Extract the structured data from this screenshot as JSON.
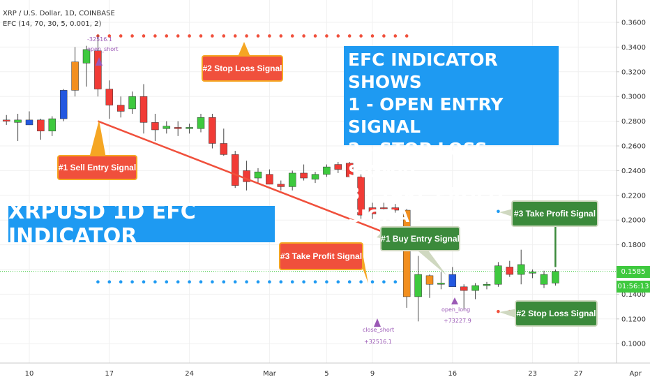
{
  "header": {
    "symbol_line": "XRP / U.S. Dollar, 1D, COINBASE",
    "indicator_line": "EFC (14, 70, 30, 5, 0.001, 2)"
  },
  "annotations": {
    "headline": "XRPUSD 1D EFC INDICATOR",
    "legend_lines": [
      "EFC INDICATOR SHOWS",
      "1 - OPEN ENTRY SIGNAL",
      "2 - STOP LOSS SIGNAL",
      "3 - TAKE PROFIT SIGNAL"
    ],
    "sell_entry": "#1 Sell Entry Signal",
    "stop_loss_top": "#2 Stop Loss Signal",
    "take_profit_left": "#3 Take Profit Signal",
    "buy_entry": "#1 Buy Entry Signal",
    "take_profit_right": "#3 Take Profit Signal",
    "stop_loss_bottom": "#2 Stop Loss Signal",
    "open_short": "open_short",
    "open_short_value": "-32516.1",
    "close_short": "close_short",
    "close_short_value": "+32516.1",
    "open_long": "open_long",
    "open_long_value": "+73227.9"
  },
  "price_labels": {
    "current_price": "0.1585",
    "countdown": "01:56:13"
  },
  "colors": {
    "bull": "#3ec93e",
    "bear": "#f13b36",
    "blue_candle": "#2358e0",
    "orange_candle": "#f28f1f",
    "red_dot": "#f0503c",
    "blue_dot": "#1e9af2",
    "arrow_red": "#f0503c",
    "arrow_green": "#3b8a3b",
    "price_line": "#3ec93e"
  },
  "chart_data": {
    "type": "candlestick",
    "y_ticks": [
      "0.1000",
      "0.1200",
      "0.1400",
      "0.1600",
      "0.1800",
      "0.2000",
      "0.2200",
      "0.2400",
      "0.2600",
      "0.2800",
      "0.3000",
      "0.3200",
      "0.3400",
      "0.3600"
    ],
    "ylim": [
      0.09,
      0.37
    ],
    "x_ticks": [
      {
        "label": "10",
        "day": 10
      },
      {
        "label": "17",
        "day": 17
      },
      {
        "label": "24",
        "day": 24
      },
      {
        "label": "Mar",
        "day": 31
      },
      {
        "label": "5",
        "day": 36
      },
      {
        "label": "9",
        "day": 40
      },
      {
        "label": "16",
        "day": 47
      },
      {
        "label": "23",
        "day": 54
      },
      {
        "label": "27",
        "day": 58
      },
      {
        "label": "Apr",
        "day": 63
      }
    ],
    "candles": [
      {
        "day": 8,
        "o": 0.281,
        "h": 0.285,
        "l": 0.277,
        "c": 0.28,
        "color": "bear"
      },
      {
        "day": 9,
        "o": 0.279,
        "h": 0.286,
        "l": 0.264,
        "c": 0.281,
        "color": "bull"
      },
      {
        "day": 10,
        "o": 0.281,
        "h": 0.288,
        "l": 0.277,
        "c": 0.277,
        "color": "blue"
      },
      {
        "day": 11,
        "o": 0.272,
        "h": 0.282,
        "l": 0.265,
        "c": 0.281,
        "color": "bear"
      },
      {
        "day": 12,
        "o": 0.272,
        "h": 0.284,
        "l": 0.268,
        "c": 0.282,
        "color": "bull"
      },
      {
        "day": 13,
        "o": 0.282,
        "h": 0.306,
        "l": 0.28,
        "c": 0.305,
        "color": "blue"
      },
      {
        "day": 14,
        "o": 0.305,
        "h": 0.34,
        "l": 0.3,
        "c": 0.328,
        "color": "orange"
      },
      {
        "day": 15,
        "o": 0.327,
        "h": 0.341,
        "l": 0.308,
        "c": 0.338,
        "color": "bull"
      },
      {
        "day": 16,
        "o": 0.337,
        "h": 0.35,
        "l": 0.3,
        "c": 0.306,
        "color": "bear"
      },
      {
        "day": 17,
        "o": 0.306,
        "h": 0.313,
        "l": 0.282,
        "c": 0.293,
        "color": "bear"
      },
      {
        "day": 18,
        "o": 0.293,
        "h": 0.3,
        "l": 0.283,
        "c": 0.288,
        "color": "bear"
      },
      {
        "day": 19,
        "o": 0.29,
        "h": 0.304,
        "l": 0.286,
        "c": 0.3,
        "color": "bull"
      },
      {
        "day": 20,
        "o": 0.3,
        "h": 0.31,
        "l": 0.27,
        "c": 0.279,
        "color": "bear"
      },
      {
        "day": 21,
        "o": 0.279,
        "h": 0.286,
        "l": 0.264,
        "c": 0.273,
        "color": "bear"
      },
      {
        "day": 22,
        "o": 0.274,
        "h": 0.28,
        "l": 0.27,
        "c": 0.276,
        "color": "bull"
      },
      {
        "day": 23,
        "o": 0.275,
        "h": 0.28,
        "l": 0.268,
        "c": 0.274,
        "color": "bear"
      },
      {
        "day": 24,
        "o": 0.274,
        "h": 0.278,
        "l": 0.27,
        "c": 0.275,
        "color": "bull"
      },
      {
        "day": 25,
        "o": 0.274,
        "h": 0.286,
        "l": 0.271,
        "c": 0.283,
        "color": "bull"
      },
      {
        "day": 26,
        "o": 0.283,
        "h": 0.286,
        "l": 0.258,
        "c": 0.262,
        "color": "bear"
      },
      {
        "day": 27,
        "o": 0.262,
        "h": 0.274,
        "l": 0.252,
        "c": 0.253,
        "color": "bear"
      },
      {
        "day": 28,
        "o": 0.253,
        "h": 0.256,
        "l": 0.226,
        "c": 0.228,
        "color": "bear"
      },
      {
        "day": 29,
        "o": 0.24,
        "h": 0.248,
        "l": 0.224,
        "c": 0.231,
        "color": "bear"
      },
      {
        "day": 30,
        "o": 0.234,
        "h": 0.242,
        "l": 0.229,
        "c": 0.239,
        "color": "bull"
      },
      {
        "day": 31,
        "o": 0.237,
        "h": 0.241,
        "l": 0.229,
        "c": 0.229,
        "color": "bear"
      },
      {
        "day": 32,
        "o": 0.229,
        "h": 0.232,
        "l": 0.224,
        "c": 0.227,
        "color": "bear"
      },
      {
        "day": 33,
        "o": 0.227,
        "h": 0.24,
        "l": 0.224,
        "c": 0.238,
        "color": "bull"
      },
      {
        "day": 34,
        "o": 0.238,
        "h": 0.245,
        "l": 0.232,
        "c": 0.234,
        "color": "bear"
      },
      {
        "day": 35,
        "o": 0.233,
        "h": 0.239,
        "l": 0.23,
        "c": 0.237,
        "color": "bull"
      },
      {
        "day": 36,
        "o": 0.237,
        "h": 0.245,
        "l": 0.235,
        "c": 0.243,
        "color": "bull"
      },
      {
        "day": 37,
        "o": 0.245,
        "h": 0.247,
        "l": 0.238,
        "c": 0.241,
        "color": "bear"
      },
      {
        "day": 38,
        "o": 0.246,
        "h": 0.247,
        "l": 0.235,
        "c": 0.235,
        "color": "bear"
      },
      {
        "day": 39,
        "o": 0.235,
        "h": 0.237,
        "l": 0.201,
        "c": 0.204,
        "color": "bear"
      },
      {
        "day": 40,
        "o": 0.205,
        "h": 0.214,
        "l": 0.199,
        "c": 0.21,
        "color": "bear"
      },
      {
        "day": 41,
        "o": 0.21,
        "h": 0.214,
        "l": 0.206,
        "c": 0.21,
        "color": "bear"
      },
      {
        "day": 42,
        "o": 0.21,
        "h": 0.213,
        "l": 0.206,
        "c": 0.208,
        "color": "bear"
      },
      {
        "day": 43,
        "o": 0.208,
        "h": 0.209,
        "l": 0.129,
        "c": 0.138,
        "color": "orange"
      },
      {
        "day": 44,
        "o": 0.138,
        "h": 0.171,
        "l": 0.118,
        "c": 0.156,
        "color": "bull"
      },
      {
        "day": 45,
        "o": 0.155,
        "h": 0.156,
        "l": 0.137,
        "c": 0.148,
        "color": "orange"
      },
      {
        "day": 46,
        "o": 0.149,
        "h": 0.158,
        "l": 0.144,
        "c": 0.148,
        "color": "bull"
      },
      {
        "day": 47,
        "o": 0.156,
        "h": 0.162,
        "l": 0.146,
        "c": 0.146,
        "color": "blue"
      },
      {
        "day": 48,
        "o": 0.146,
        "h": 0.148,
        "l": 0.127,
        "c": 0.143,
        "color": "bear"
      },
      {
        "day": 49,
        "o": 0.143,
        "h": 0.149,
        "l": 0.136,
        "c": 0.147,
        "color": "bull"
      },
      {
        "day": 50,
        "o": 0.147,
        "h": 0.15,
        "l": 0.144,
        "c": 0.148,
        "color": "bull"
      },
      {
        "day": 51,
        "o": 0.148,
        "h": 0.166,
        "l": 0.146,
        "c": 0.163,
        "color": "bull"
      },
      {
        "day": 52,
        "o": 0.162,
        "h": 0.167,
        "l": 0.154,
        "c": 0.156,
        "color": "bear"
      },
      {
        "day": 53,
        "o": 0.156,
        "h": 0.176,
        "l": 0.148,
        "c": 0.164,
        "color": "bull"
      },
      {
        "day": 54,
        "o": 0.158,
        "h": 0.16,
        "l": 0.153,
        "c": 0.157,
        "color": "bull"
      },
      {
        "day": 55,
        "o": 0.156,
        "h": 0.159,
        "l": 0.145,
        "c": 0.148,
        "color": "bull"
      },
      {
        "day": 56,
        "o": 0.149,
        "h": 0.16,
        "l": 0.147,
        "c": 0.1585,
        "color": "bull"
      }
    ],
    "stop_loss_dots_top": {
      "price": 0.349,
      "from_day": 16,
      "to_day": 43
    },
    "take_profit_dots_left": {
      "price": 0.15,
      "from_day": 16,
      "to_day": 43
    },
    "take_profit_dots_right": {
      "price": 0.207,
      "from_day": 51,
      "to_day": 56
    },
    "stop_loss_dots_bottom": {
      "price": 0.126,
      "from_day": 51,
      "to_day": 56
    },
    "sell_arrow": {
      "from_day": 16,
      "from_price": 0.28,
      "to_day": 43,
      "to_price": 0.183
    },
    "buy_arrow": {
      "day": 56,
      "from_price": 0.162,
      "to_price": 0.207
    },
    "current_price": 0.1585
  }
}
